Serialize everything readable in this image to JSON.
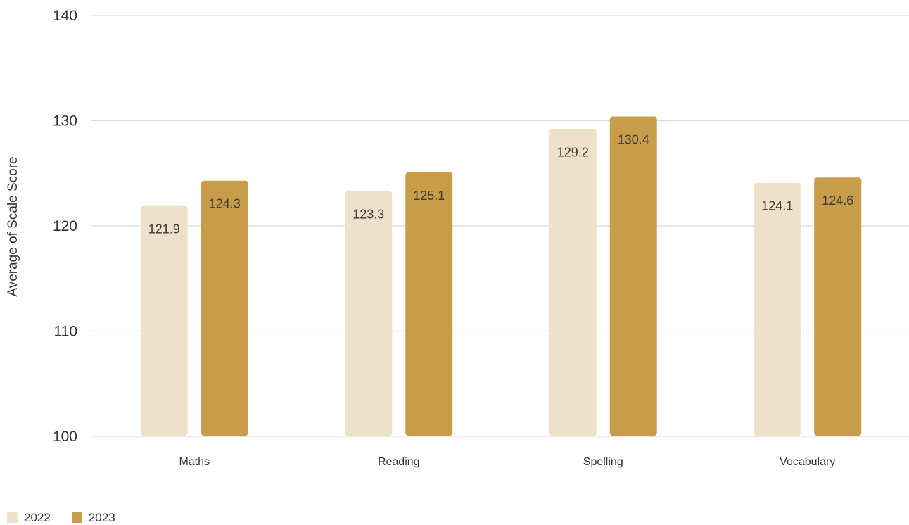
{
  "chart_data": {
    "type": "bar",
    "categories": [
      "Maths",
      "Reading",
      "Spelling",
      "Vocabulary"
    ],
    "series": [
      {
        "name": "2022",
        "values": [
          121.9,
          123.3,
          129.2,
          124.1
        ],
        "color": "#efe0c9"
      },
      {
        "name": "2023",
        "values": [
          124.3,
          125.1,
          130.4,
          124.6
        ],
        "color": "#c89c48"
      }
    ],
    "ylabel": "Average of Scale Score",
    "ylim": [
      100,
      140
    ],
    "yticks": [
      100,
      110,
      120,
      130,
      140
    ],
    "grid": true,
    "legend": "bottom-left"
  }
}
